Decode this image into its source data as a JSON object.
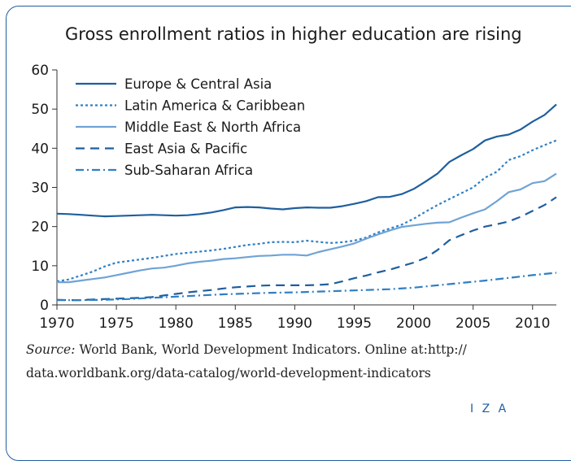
{
  "chart_data": {
    "type": "line",
    "title": "Gross enrollment ratios in higher education are rising",
    "xlim": [
      1970,
      2012
    ],
    "ylim": [
      0,
      60
    ],
    "x_ticks": [
      1970,
      1975,
      1980,
      1985,
      1990,
      1995,
      2000,
      2005,
      2010
    ],
    "y_ticks": [
      0,
      10,
      20,
      30,
      40,
      50,
      60
    ],
    "grid": false,
    "legend_position": "top-left",
    "series": [
      {
        "name": "Europe & Central Asia",
        "style": "solid",
        "color": "#1f5f9e",
        "x": [
          1970,
          1971,
          1972,
          1973,
          1974,
          1975,
          1976,
          1977,
          1978,
          1979,
          1980,
          1981,
          1982,
          1983,
          1984,
          1985,
          1986,
          1987,
          1988,
          1989,
          1990,
          1991,
          1992,
          1993,
          1994,
          1995,
          1996,
          1997,
          1998,
          1999,
          2000,
          2001,
          2002,
          2003,
          2004,
          2005,
          2006,
          2007,
          2008,
          2009,
          2010,
          2011,
          2012
        ],
        "y": [
          23.3,
          23.2,
          23.0,
          22.8,
          22.6,
          22.7,
          22.8,
          22.9,
          23.0,
          22.9,
          22.8,
          22.9,
          23.2,
          23.6,
          24.2,
          24.9,
          25.0,
          24.9,
          24.6,
          24.4,
          24.7,
          24.9,
          24.8,
          24.8,
          25.2,
          25.8,
          26.5,
          27.5,
          27.6,
          28.3,
          29.6,
          31.5,
          33.5,
          36.5,
          38.2,
          39.8,
          42.0,
          43.0,
          43.5,
          44.8,
          46.8,
          48.5,
          51.2
        ]
      },
      {
        "name": "Latin America & Caribbean",
        "style": "dotted",
        "color": "#2f7fc4",
        "x": [
          1970,
          1971,
          1972,
          1973,
          1974,
          1975,
          1976,
          1977,
          1978,
          1979,
          1980,
          1981,
          1982,
          1983,
          1984,
          1985,
          1986,
          1987,
          1988,
          1989,
          1990,
          1991,
          1992,
          1993,
          1994,
          1995,
          1996,
          1997,
          1998,
          1999,
          2000,
          2001,
          2002,
          2003,
          2004,
          2005,
          2006,
          2007,
          2008,
          2009,
          2010,
          2011,
          2012
        ],
        "y": [
          6.0,
          6.5,
          7.5,
          8.5,
          9.8,
          10.8,
          11.2,
          11.6,
          12.0,
          12.5,
          13.0,
          13.3,
          13.6,
          13.9,
          14.3,
          14.8,
          15.3,
          15.6,
          16.0,
          16.1,
          16.0,
          16.4,
          16.1,
          15.8,
          16.0,
          16.4,
          17.2,
          18.5,
          19.5,
          20.5,
          22.0,
          23.8,
          25.5,
          27.0,
          28.5,
          30.0,
          32.5,
          34.0,
          37.0,
          38.0,
          39.5,
          40.8,
          42.0
        ]
      },
      {
        "name": "Middle East & North Africa",
        "style": "solid-light",
        "color": "#6fa3d6",
        "x": [
          1970,
          1971,
          1972,
          1973,
          1974,
          1975,
          1976,
          1977,
          1978,
          1979,
          1980,
          1981,
          1982,
          1983,
          1984,
          1985,
          1986,
          1987,
          1988,
          1989,
          1990,
          1991,
          1992,
          1993,
          1994,
          1995,
          1996,
          1997,
          1998,
          1999,
          2000,
          2001,
          2002,
          2003,
          2004,
          2005,
          2006,
          2007,
          2008,
          2009,
          2010,
          2011,
          2012
        ],
        "y": [
          5.8,
          5.8,
          6.2,
          6.6,
          7.0,
          7.6,
          8.2,
          8.8,
          9.3,
          9.5,
          10.0,
          10.6,
          11.0,
          11.3,
          11.7,
          11.9,
          12.2,
          12.5,
          12.6,
          12.8,
          12.8,
          12.6,
          13.5,
          14.2,
          14.9,
          15.7,
          16.9,
          18.0,
          19.0,
          19.9,
          20.3,
          20.7,
          21.0,
          21.1,
          22.3,
          23.4,
          24.4,
          26.5,
          28.8,
          29.5,
          31.1,
          31.6,
          33.5
        ]
      },
      {
        "name": "East Asia & Pacific",
        "style": "dashed",
        "color": "#1f5f9e",
        "x": [
          1970,
          1971,
          1972,
          1973,
          1974,
          1975,
          1976,
          1977,
          1978,
          1979,
          1980,
          1981,
          1982,
          1983,
          1984,
          1985,
          1986,
          1987,
          1988,
          1989,
          1990,
          1991,
          1992,
          1993,
          1994,
          1995,
          1996,
          1997,
          1998,
          1999,
          2000,
          2001,
          2002,
          2003,
          2004,
          2005,
          2006,
          2007,
          2008,
          2009,
          2010,
          2011,
          2012
        ],
        "y": [
          1.3,
          1.2,
          1.2,
          1.4,
          1.5,
          1.6,
          1.7,
          1.8,
          2.0,
          2.4,
          2.8,
          3.2,
          3.5,
          3.8,
          4.2,
          4.5,
          4.7,
          4.9,
          5.0,
          5.0,
          5.0,
          5.0,
          5.1,
          5.3,
          6.0,
          6.8,
          7.5,
          8.3,
          9.0,
          9.9,
          10.8,
          12.0,
          14.0,
          16.5,
          17.8,
          19.0,
          20.0,
          20.6,
          21.3,
          22.5,
          24.0,
          25.5,
          27.5
        ]
      },
      {
        "name": "Sub-Saharan Africa",
        "style": "dashdot",
        "color": "#2f7fc4",
        "x": [
          1970,
          1972,
          1974,
          1976,
          1978,
          1980,
          1982,
          1984,
          1986,
          1988,
          1990,
          1992,
          1994,
          1996,
          1998,
          2000,
          2002,
          2004,
          2006,
          2008,
          2010,
          2012
        ],
        "y": [
          1.2,
          1.2,
          1.3,
          1.5,
          1.8,
          2.1,
          2.4,
          2.7,
          2.9,
          3.1,
          3.2,
          3.4,
          3.6,
          3.8,
          4.0,
          4.4,
          5.0,
          5.6,
          6.2,
          6.9,
          7.6,
          8.2
        ]
      }
    ]
  },
  "source": {
    "label": "Source:",
    "line1": " World Bank, World Development Indicators. Online at:http://",
    "line2": "data.worldbank.org/data-catalog/world-development-indicators"
  },
  "logo": {
    "text": "I Z A"
  },
  "colors": {
    "frame": "#1f5f9e",
    "axis": "#333333"
  }
}
